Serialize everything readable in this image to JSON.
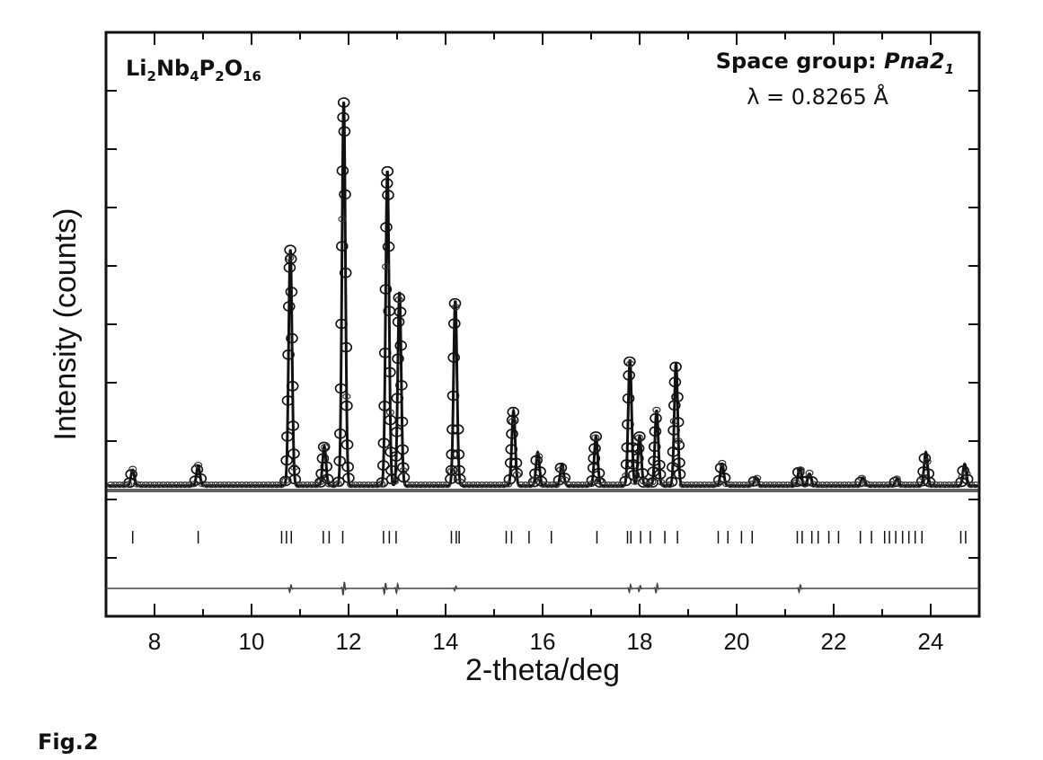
{
  "figure": {
    "caption": "Fig.2"
  },
  "chart_data": {
    "type": "line",
    "xlabel": "2-theta/deg",
    "ylabel": "Intensity (counts)",
    "xlim": [
      7,
      25
    ],
    "x_ticks": [
      8,
      10,
      12,
      14,
      16,
      18,
      20,
      22,
      24
    ],
    "y_tick_count": 10,
    "grid": false,
    "legend": "none",
    "annotations": {
      "compound": {
        "base": "Li",
        "sub1": "2",
        "el2": "Nb",
        "sub2": "4",
        "el3": "P",
        "sub3": "2",
        "el4": "O",
        "sub4": "16"
      },
      "space_group_label": "Space group: ",
      "space_group_symbol": "Pna2",
      "space_group_sub": "1",
      "wavelength": "λ = 0.8265 Å"
    },
    "series": [
      {
        "name": "observed",
        "style": "open-circles"
      },
      {
        "name": "calculated",
        "style": "line"
      },
      {
        "name": "Bragg positions",
        "style": "tick-marks"
      },
      {
        "name": "difference",
        "style": "line"
      }
    ],
    "peaks": [
      {
        "x": 7.55,
        "y": 8
      },
      {
        "x": 8.9,
        "y": 10
      },
      {
        "x": 10.8,
        "y": 120
      },
      {
        "x": 11.5,
        "y": 20
      },
      {
        "x": 11.9,
        "y": 195
      },
      {
        "x": 12.8,
        "y": 160
      },
      {
        "x": 13.05,
        "y": 98
      },
      {
        "x": 14.2,
        "y": 94
      },
      {
        "x": 15.4,
        "y": 38
      },
      {
        "x": 15.9,
        "y": 17
      },
      {
        "x": 16.4,
        "y": 11
      },
      {
        "x": 17.1,
        "y": 25
      },
      {
        "x": 17.8,
        "y": 64
      },
      {
        "x": 18.0,
        "y": 25
      },
      {
        "x": 18.35,
        "y": 38
      },
      {
        "x": 18.75,
        "y": 62
      },
      {
        "x": 19.7,
        "y": 11
      },
      {
        "x": 20.4,
        "y": 4
      },
      {
        "x": 21.3,
        "y": 9
      },
      {
        "x": 21.5,
        "y": 6
      },
      {
        "x": 22.6,
        "y": 4
      },
      {
        "x": 23.3,
        "y": 3
      },
      {
        "x": 23.9,
        "y": 17
      },
      {
        "x": 24.7,
        "y": 11
      }
    ],
    "peak_width": 0.035,
    "background": 2,
    "ylim": [
      0,
      215
    ],
    "bragg_positions": [
      7.55,
      8.9,
      10.62,
      10.72,
      10.82,
      11.48,
      11.6,
      11.88,
      12.72,
      12.84,
      12.98,
      14.12,
      14.22,
      14.28,
      15.25,
      15.36,
      15.72,
      16.18,
      17.12,
      17.75,
      17.82,
      18.02,
      18.22,
      18.52,
      18.78,
      19.62,
      19.82,
      20.1,
      20.32,
      21.25,
      21.35,
      21.55,
      21.68,
      21.9,
      22.1,
      22.55,
      22.78,
      23.05,
      23.15,
      23.28,
      23.42,
      23.55,
      23.68,
      23.82,
      24.62,
      24.72
    ],
    "difference_spikes": [
      {
        "x": 10.8,
        "a": 5
      },
      {
        "x": 11.9,
        "a": 9
      },
      {
        "x": 12.75,
        "a": 7
      },
      {
        "x": 13.0,
        "a": 6
      },
      {
        "x": 14.2,
        "a": 3
      },
      {
        "x": 17.8,
        "a": 5
      },
      {
        "x": 18.0,
        "a": 4
      },
      {
        "x": 18.35,
        "a": 6
      },
      {
        "x": 21.3,
        "a": 5
      }
    ]
  }
}
